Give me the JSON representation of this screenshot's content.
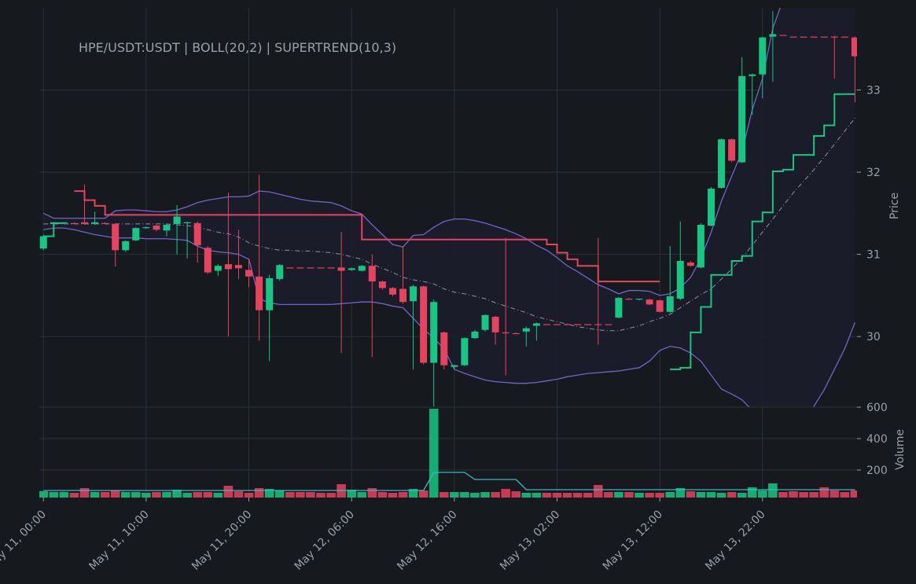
{
  "chart_data": {
    "type": "candlestick",
    "title": "HPE/USDT:USDT | BOLL(20,2) | SUPERTREND(10,3)",
    "x": [
      0,
      1,
      2,
      3,
      4,
      5,
      6,
      7,
      8,
      9,
      10,
      11,
      12,
      13,
      14,
      15,
      16,
      17,
      18,
      19,
      20,
      21,
      22,
      23,
      24,
      25,
      26,
      27,
      28,
      29,
      30,
      31,
      32,
      33,
      34,
      35,
      36,
      37,
      38,
      39,
      40,
      41,
      42,
      43,
      44,
      45,
      46,
      47,
      48,
      49,
      50,
      51,
      52,
      53,
      54,
      55,
      56,
      57,
      58,
      59,
      60,
      61,
      62,
      63,
      64,
      65,
      66,
      67,
      68,
      69,
      70,
      71,
      72,
      73,
      74,
      75,
      76,
      77,
      78,
      79
    ],
    "xlim": [
      -0.4,
      79.2
    ],
    "xticks": [
      {
        "value": 0,
        "label": "May 11, 00:00"
      },
      {
        "value": 10,
        "label": "May 11, 10:00"
      },
      {
        "value": 20,
        "label": "May 11, 20:00"
      },
      {
        "value": 30,
        "label": "May 12, 06:00"
      },
      {
        "value": 40,
        "label": "May 12, 16:00"
      },
      {
        "value": 50,
        "label": "May 13, 02:00"
      },
      {
        "value": 60,
        "label": "May 13, 12:00"
      },
      {
        "value": 70,
        "label": "May 13, 22:00"
      }
    ],
    "open": [
      31.07,
      31.37,
      31.38,
      31.38,
      31.39,
      31.37,
      31.38,
      31.37,
      31.05,
      31.17,
      31.32,
      31.35,
      31.29,
      31.37,
      31.38,
      31.38,
      31.08,
      30.8,
      30.88,
      30.87,
      30.81,
      30.73,
      30.32,
      30.7,
      30.84,
      30.84,
      30.84,
      30.84,
      30.84,
      30.84,
      30.81,
      30.8,
      30.86,
      30.67,
      30.59,
      30.58,
      30.43,
      30.61,
      29.68,
      30.05,
      29.63,
      29.65,
      29.98,
      30.08,
      30.24,
      30.05,
      30.04,
      30.06,
      30.13,
      30.15,
      30.15,
      30.15,
      30.15,
      30.15,
      30.15,
      30.15,
      30.23,
      30.46,
      30.45,
      30.45,
      30.44,
      30.3,
      30.46,
      30.9,
      30.84,
      31.35,
      31.81,
      32.4,
      32.12,
      33.17,
      33.19,
      33.65,
      33.67,
      33.65,
      33.65,
      33.65,
      33.65,
      33.65,
      33.65,
      33.64
    ],
    "high": [
      31.24,
      31.39,
      31.39,
      31.39,
      31.85,
      31.52,
      31.39,
      31.38,
      31.17,
      31.33,
      31.34,
      31.36,
      31.37,
      31.6,
      31.4,
      31.4,
      31.1,
      30.88,
      31.75,
      31.3,
      30.95,
      31.97,
      30.75,
      30.88,
      30.84,
      30.84,
      30.84,
      30.84,
      30.84,
      31.27,
      30.84,
      30.87,
      31.0,
      30.68,
      30.6,
      31.1,
      30.63,
      30.62,
      30.45,
      30.06,
      29.66,
      29.99,
      30.08,
      30.27,
      30.25,
      31.2,
      30.05,
      30.12,
      30.17,
      30.15,
      30.15,
      30.15,
      30.15,
      30.15,
      31.2,
      30.15,
      30.48,
      30.47,
      30.46,
      30.46,
      30.45,
      31.1,
      31.4,
      30.92,
      31.38,
      31.82,
      32.41,
      32.41,
      33.4,
      33.2,
      33.65,
      33.96,
      33.67,
      33.65,
      33.65,
      33.65,
      33.65,
      33.66,
      33.65,
      33.65
    ],
    "low": [
      31.05,
      31.36,
      31.37,
      31.37,
      31.36,
      31.36,
      31.37,
      30.85,
      31.03,
      31.16,
      31.31,
      31.28,
      31.22,
      31.0,
      30.95,
      30.9,
      30.76,
      30.74,
      30.0,
      30.7,
      30.6,
      29.95,
      29.7,
      30.68,
      30.84,
      30.84,
      30.84,
      30.84,
      30.84,
      29.8,
      30.8,
      30.79,
      29.75,
      30.57,
      30.49,
      30.4,
      29.6,
      29.66,
      29.15,
      29.6,
      29.6,
      29.64,
      29.97,
      30.06,
      29.9,
      29.53,
      30.03,
      29.88,
      29.95,
      30.15,
      30.15,
      30.15,
      30.15,
      30.15,
      29.9,
      30.15,
      30.22,
      30.45,
      30.44,
      30.38,
      30.29,
      30.29,
      30.44,
      30.85,
      30.83,
      31.34,
      31.8,
      32.12,
      32.11,
      32.7,
      32.9,
      33.1,
      33.67,
      33.65,
      33.65,
      33.65,
      33.65,
      33.14,
      33.65,
      32.85
    ],
    "close": [
      31.22,
      31.39,
      31.39,
      31.38,
      31.37,
      31.39,
      31.37,
      31.05,
      31.16,
      31.32,
      31.33,
      31.3,
      31.36,
      31.46,
      31.39,
      31.11,
      30.78,
      30.86,
      30.82,
      30.83,
      30.73,
      30.32,
      30.71,
      30.87,
      30.84,
      30.84,
      30.84,
      30.84,
      30.84,
      30.8,
      30.83,
      30.86,
      30.67,
      30.59,
      30.51,
      30.42,
      30.61,
      29.68,
      30.42,
      29.65,
      29.65,
      29.98,
      30.06,
      30.26,
      30.05,
      30.04,
      30.04,
      30.1,
      30.16,
      30.15,
      30.15,
      30.15,
      30.15,
      30.15,
      30.15,
      30.15,
      30.47,
      30.46,
      30.46,
      30.39,
      30.3,
      30.49,
      30.92,
      30.86,
      31.36,
      31.8,
      32.4,
      32.14,
      33.17,
      33.19,
      33.64,
      33.68,
      33.67,
      33.65,
      33.65,
      33.65,
      33.65,
      33.65,
      33.65,
      33.41
    ],
    "up_color": "#16c784",
    "down_color": "#e5435e",
    "ylim": [
      29.14,
      34.0
    ],
    "yticks": [
      30,
      31,
      32,
      33
    ],
    "ylabel": "Price",
    "grid": true,
    "bands": {
      "color": "#7463c9",
      "middle_color": "#8e8ea8",
      "fill": "#1c1d2b",
      "upper": [
        31.5,
        31.44,
        31.44,
        31.44,
        31.44,
        31.44,
        31.44,
        31.53,
        31.54,
        31.54,
        31.53,
        31.52,
        31.52,
        31.54,
        31.58,
        31.63,
        31.66,
        31.68,
        31.7,
        31.7,
        31.71,
        31.77,
        31.76,
        31.73,
        31.7,
        31.67,
        31.65,
        31.64,
        31.63,
        31.59,
        31.53,
        31.49,
        31.36,
        31.24,
        31.12,
        31.09,
        31.23,
        31.24,
        31.33,
        31.4,
        31.43,
        31.43,
        31.41,
        31.38,
        31.34,
        31.3,
        31.25,
        31.19,
        31.11,
        31.05,
        30.96,
        30.86,
        30.79,
        30.71,
        30.63,
        30.58,
        30.52,
        30.56,
        30.56,
        30.55,
        30.5,
        30.52,
        30.59,
        30.72,
        30.95,
        31.27,
        31.65,
        31.95,
        32.25,
        32.76,
        33.14,
        33.75,
        34.1,
        34.2,
        34.3,
        34.35,
        34.4,
        34.45,
        34.5,
        34.55
      ],
      "middle": [
        31.37,
        31.37,
        31.37,
        31.37,
        31.37,
        31.37,
        31.37,
        31.37,
        31.37,
        31.37,
        31.37,
        31.37,
        31.37,
        31.36,
        31.35,
        31.33,
        31.3,
        31.27,
        31.25,
        31.21,
        31.14,
        31.1,
        31.07,
        31.05,
        31.05,
        31.04,
        31.04,
        31.03,
        31.02,
        31.0,
        30.97,
        30.94,
        30.88,
        30.83,
        30.78,
        30.72,
        30.69,
        30.67,
        30.64,
        30.58,
        30.54,
        30.52,
        30.49,
        30.46,
        30.41,
        30.37,
        30.33,
        30.29,
        30.24,
        30.21,
        30.18,
        30.15,
        30.12,
        30.1,
        30.08,
        30.07,
        30.07,
        30.1,
        30.13,
        30.18,
        30.22,
        30.27,
        30.35,
        30.43,
        30.51,
        30.58,
        30.7,
        30.82,
        30.96,
        31.11,
        31.27,
        31.43,
        31.59,
        31.75,
        31.89,
        32.03,
        32.18,
        32.34,
        32.5,
        32.66
      ],
      "lower": [
        31.3,
        31.32,
        31.32,
        31.3,
        31.27,
        31.24,
        31.22,
        31.2,
        31.2,
        31.2,
        31.19,
        31.19,
        31.19,
        31.18,
        31.17,
        31.1,
        31.05,
        31.03,
        31.02,
        31.0,
        30.94,
        30.46,
        30.41,
        30.39,
        30.39,
        30.39,
        30.39,
        30.39,
        30.39,
        30.4,
        30.41,
        30.42,
        30.42,
        30.4,
        30.37,
        30.35,
        30.22,
        30.09,
        29.98,
        29.85,
        29.6,
        29.55,
        29.51,
        29.47,
        29.45,
        29.44,
        29.43,
        29.43,
        29.44,
        29.46,
        29.48,
        29.51,
        29.53,
        29.55,
        29.56,
        29.57,
        29.58,
        29.6,
        29.62,
        29.7,
        29.83,
        29.88,
        29.86,
        29.8,
        29.7,
        29.53,
        29.36,
        29.3,
        29.23,
        29.1,
        29.02,
        28.95,
        28.9,
        28.88,
        29.0,
        29.15,
        29.35,
        29.6,
        29.85,
        30.17
      ]
    },
    "supertrend": [
      {
        "color": "#16c784",
        "values": [
          31.22,
          31.38,
          31.38,
          null,
          null,
          null,
          null,
          null,
          null,
          null,
          null,
          null,
          null,
          null,
          null,
          null,
          null,
          null,
          null,
          null,
          null,
          null,
          null,
          null,
          null,
          null,
          null,
          null,
          null,
          null,
          null,
          null,
          null,
          null,
          null,
          null,
          null,
          null,
          null,
          null,
          null,
          null,
          null,
          null,
          null,
          null,
          null,
          null,
          null,
          null,
          null,
          null,
          null,
          null,
          null,
          null,
          null,
          null,
          null,
          null,
          null,
          29.6,
          29.62,
          30.05,
          30.36,
          30.75,
          30.75,
          30.92,
          30.98,
          31.4,
          31.51,
          32.01,
          32.03,
          32.21,
          32.21,
          32.44,
          32.57,
          32.95,
          32.95,
          32.95
        ]
      },
      {
        "color": "#e5435e",
        "values": [
          null,
          null,
          null,
          31.77,
          31.66,
          31.59,
          31.48,
          31.48,
          31.48,
          31.48,
          31.48,
          31.48,
          31.48,
          31.48,
          31.48,
          31.48,
          31.48,
          31.48,
          31.48,
          31.48,
          31.48,
          31.48,
          31.48,
          31.48,
          31.48,
          31.48,
          31.48,
          31.48,
          31.48,
          31.48,
          31.48,
          31.18,
          31.18,
          31.18,
          31.18,
          31.18,
          31.18,
          31.18,
          31.18,
          31.18,
          31.18,
          31.18,
          31.18,
          31.18,
          31.18,
          31.18,
          31.18,
          31.18,
          31.18,
          31.12,
          31.02,
          30.94,
          30.86,
          30.86,
          30.67,
          30.67,
          30.67,
          30.67,
          30.67,
          30.67,
          30.67,
          null,
          null,
          null,
          null,
          null,
          null,
          null,
          null,
          null,
          null,
          null,
          null,
          null,
          null,
          null,
          null,
          null,
          null,
          null
        ]
      }
    ],
    "volume": {
      "ylabel": "Volume",
      "ylim": [
        25,
        600
      ],
      "yticks": [
        200,
        400,
        600
      ],
      "values": [
        65,
        60,
        60,
        55,
        85,
        60,
        60,
        70,
        60,
        60,
        55,
        60,
        60,
        75,
        55,
        60,
        60,
        55,
        100,
        65,
        55,
        85,
        80,
        70,
        60,
        60,
        60,
        55,
        55,
        110,
        75,
        60,
        85,
        60,
        55,
        60,
        80,
        70,
        590,
        60,
        60,
        60,
        55,
        60,
        60,
        80,
        65,
        55,
        55,
        55,
        55,
        55,
        55,
        55,
        105,
        60,
        60,
        60,
        55,
        55,
        55,
        60,
        85,
        65,
        60,
        60,
        55,
        60,
        55,
        90,
        70,
        115,
        60,
        65,
        60,
        60,
        90,
        70,
        60,
        70
      ],
      "ma_color": "#3db8c8",
      "ma": [
        70,
        70,
        70,
        70,
        70,
        70,
        70,
        70,
        70,
        70,
        70,
        70,
        70,
        70,
        70,
        70,
        70,
        70,
        70,
        70,
        70,
        70,
        70,
        70,
        70,
        70,
        70,
        70,
        70,
        70,
        70,
        70,
        70,
        70,
        70,
        70,
        70,
        70,
        185,
        185,
        185,
        185,
        140,
        140,
        140,
        140,
        140,
        75,
        75,
        75,
        75,
        75,
        75,
        75,
        75,
        75,
        75,
        75,
        75,
        75,
        75,
        75,
        75,
        75,
        75,
        75,
        75,
        75,
        75,
        75,
        75,
        75,
        75,
        75,
        75,
        75,
        75,
        75,
        75,
        75
      ]
    }
  }
}
